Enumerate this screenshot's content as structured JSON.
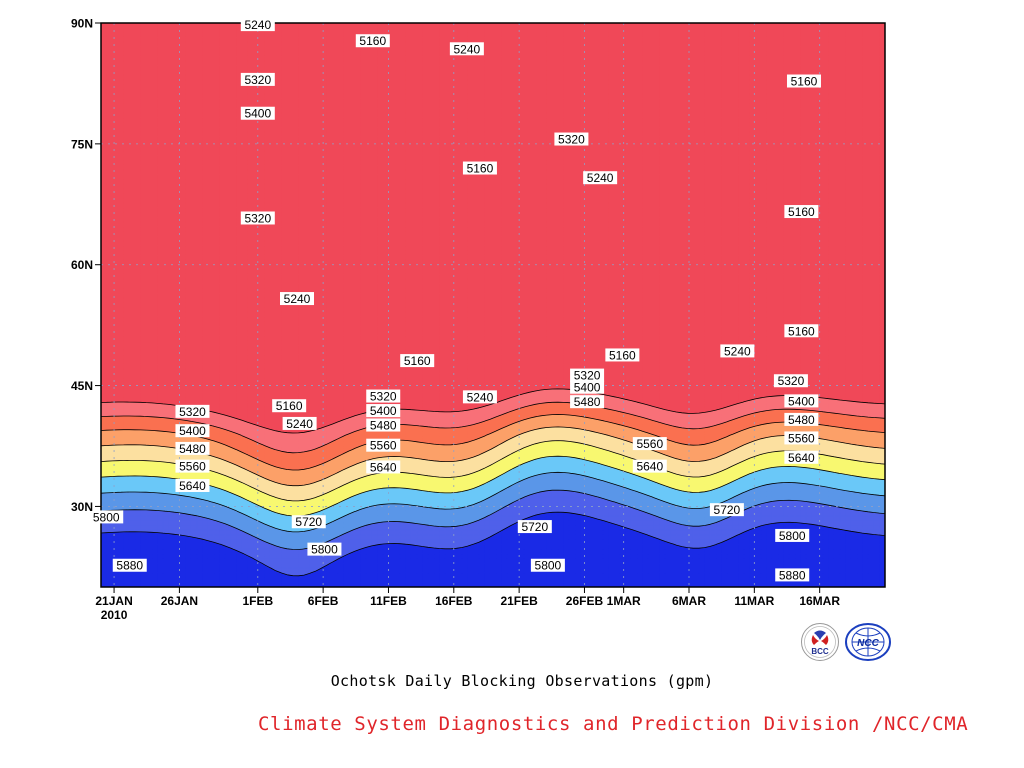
{
  "chart_data": {
    "type": "contour",
    "x_tick_labels": [
      "21JAN",
      "26JAN",
      "1FEB",
      "6FEB",
      "11FEB",
      "16FEB",
      "21FEB",
      "26FEB",
      "1MAR",
      "6MAR",
      "11MAR",
      "16MAR"
    ],
    "x_tick_values": [
      0,
      5,
      11,
      16,
      21,
      26,
      31,
      36,
      39,
      44,
      49,
      54
    ],
    "x_year_label": "2010",
    "y_tick_labels": [
      "30N",
      "45N",
      "60N",
      "75N",
      "90N"
    ],
    "y_tick_values": [
      30,
      45,
      60,
      75,
      90
    ],
    "xlim": [
      -1,
      59
    ],
    "ylim": [
      20,
      90
    ],
    "grid": true,
    "contour_levels": [
      5160,
      5240,
      5320,
      5400,
      5480,
      5560,
      5640,
      5720,
      5800,
      5880
    ],
    "level_colors": [
      "#0a1464",
      "#1a2ae6",
      "#4f60ea",
      "#5a96e8",
      "#6ac8f8",
      "#f8f870",
      "#fce0a0",
      "#fca068",
      "#fa7050",
      "#f87078",
      "#f04858"
    ],
    "contour_labels": [
      {
        "text": "5240",
        "x": 11.0,
        "lat": 89.8
      },
      {
        "text": "5160",
        "x": 19.8,
        "lat": 87.8
      },
      {
        "text": "5240",
        "x": 27.0,
        "lat": 86.8
      },
      {
        "text": "5160",
        "x": 52.8,
        "lat": 82.8
      },
      {
        "text": "5320",
        "x": 11.0,
        "lat": 83.0
      },
      {
        "text": "5400",
        "x": 11.0,
        "lat": 78.8
      },
      {
        "text": "5320",
        "x": 35.0,
        "lat": 75.6
      },
      {
        "text": "5160",
        "x": 28.0,
        "lat": 72.0
      },
      {
        "text": "5240",
        "x": 37.2,
        "lat": 70.8
      },
      {
        "text": "5320",
        "x": 11.0,
        "lat": 65.8
      },
      {
        "text": "5160",
        "x": 52.6,
        "lat": 66.6
      },
      {
        "text": "5240",
        "x": 14.0,
        "lat": 55.8
      },
      {
        "text": "5160",
        "x": 52.6,
        "lat": 51.8
      },
      {
        "text": "5240",
        "x": 47.7,
        "lat": 49.3
      },
      {
        "text": "5160",
        "x": 23.2,
        "lat": 48.1
      },
      {
        "text": "5160",
        "x": 38.9,
        "lat": 48.8
      },
      {
        "text": "5320",
        "x": 36.2,
        "lat": 46.3
      },
      {
        "text": "5320",
        "x": 51.8,
        "lat": 45.6
      },
      {
        "text": "5400",
        "x": 36.2,
        "lat": 44.8
      },
      {
        "text": "5320",
        "x": 20.6,
        "lat": 43.7
      },
      {
        "text": "5480",
        "x": 36.2,
        "lat": 43.0
      },
      {
        "text": "5240",
        "x": 28.0,
        "lat": 43.6
      },
      {
        "text": "5400",
        "x": 52.6,
        "lat": 43.1
      },
      {
        "text": "5160",
        "x": 13.4,
        "lat": 42.5
      },
      {
        "text": "5400",
        "x": 20.6,
        "lat": 41.9
      },
      {
        "text": "5320",
        "x": 6.0,
        "lat": 41.8
      },
      {
        "text": "5480",
        "x": 52.6,
        "lat": 40.8
      },
      {
        "text": "5240",
        "x": 14.2,
        "lat": 40.3
      },
      {
        "text": "5480",
        "x": 20.6,
        "lat": 40.1
      },
      {
        "text": "5400",
        "x": 6.0,
        "lat": 39.4
      },
      {
        "text": "5560",
        "x": 52.6,
        "lat": 38.5
      },
      {
        "text": "5560",
        "x": 20.6,
        "lat": 37.6
      },
      {
        "text": "5560",
        "x": 41.0,
        "lat": 37.8
      },
      {
        "text": "5480",
        "x": 6.0,
        "lat": 37.2
      },
      {
        "text": "5640",
        "x": 52.6,
        "lat": 36.1
      },
      {
        "text": "5560",
        "x": 6.0,
        "lat": 35.0
      },
      {
        "text": "5640",
        "x": 20.6,
        "lat": 34.9
      },
      {
        "text": "5640",
        "x": 41.0,
        "lat": 35.0
      },
      {
        "text": "5640",
        "x": 6.0,
        "lat": 32.6
      },
      {
        "text": "5800",
        "x": -0.6,
        "lat": 28.7
      },
      {
        "text": "5720",
        "x": 14.9,
        "lat": 28.1
      },
      {
        "text": "5720",
        "x": 46.9,
        "lat": 29.6
      },
      {
        "text": "5720",
        "x": 32.2,
        "lat": 27.5
      },
      {
        "text": "5800",
        "x": 51.9,
        "lat": 26.4
      },
      {
        "text": "5800",
        "x": 16.1,
        "lat": 24.7
      },
      {
        "text": "5800",
        "x": 33.2,
        "lat": 22.7
      },
      {
        "text": "5880",
        "x": 1.2,
        "lat": 22.7
      },
      {
        "text": "5880",
        "x": 51.9,
        "lat": 21.5
      }
    ]
  },
  "title": "Ochotsk Daily Blocking Observations (gpm)",
  "credit": "Climate System Diagnostics and Prediction Division /NCC/CMA",
  "logos": [
    {
      "name": "BCC",
      "text": "BCC"
    },
    {
      "name": "NCC",
      "text": "NCC"
    }
  ],
  "colors": {
    "credit": "#e0252a",
    "frame": "#000000"
  }
}
